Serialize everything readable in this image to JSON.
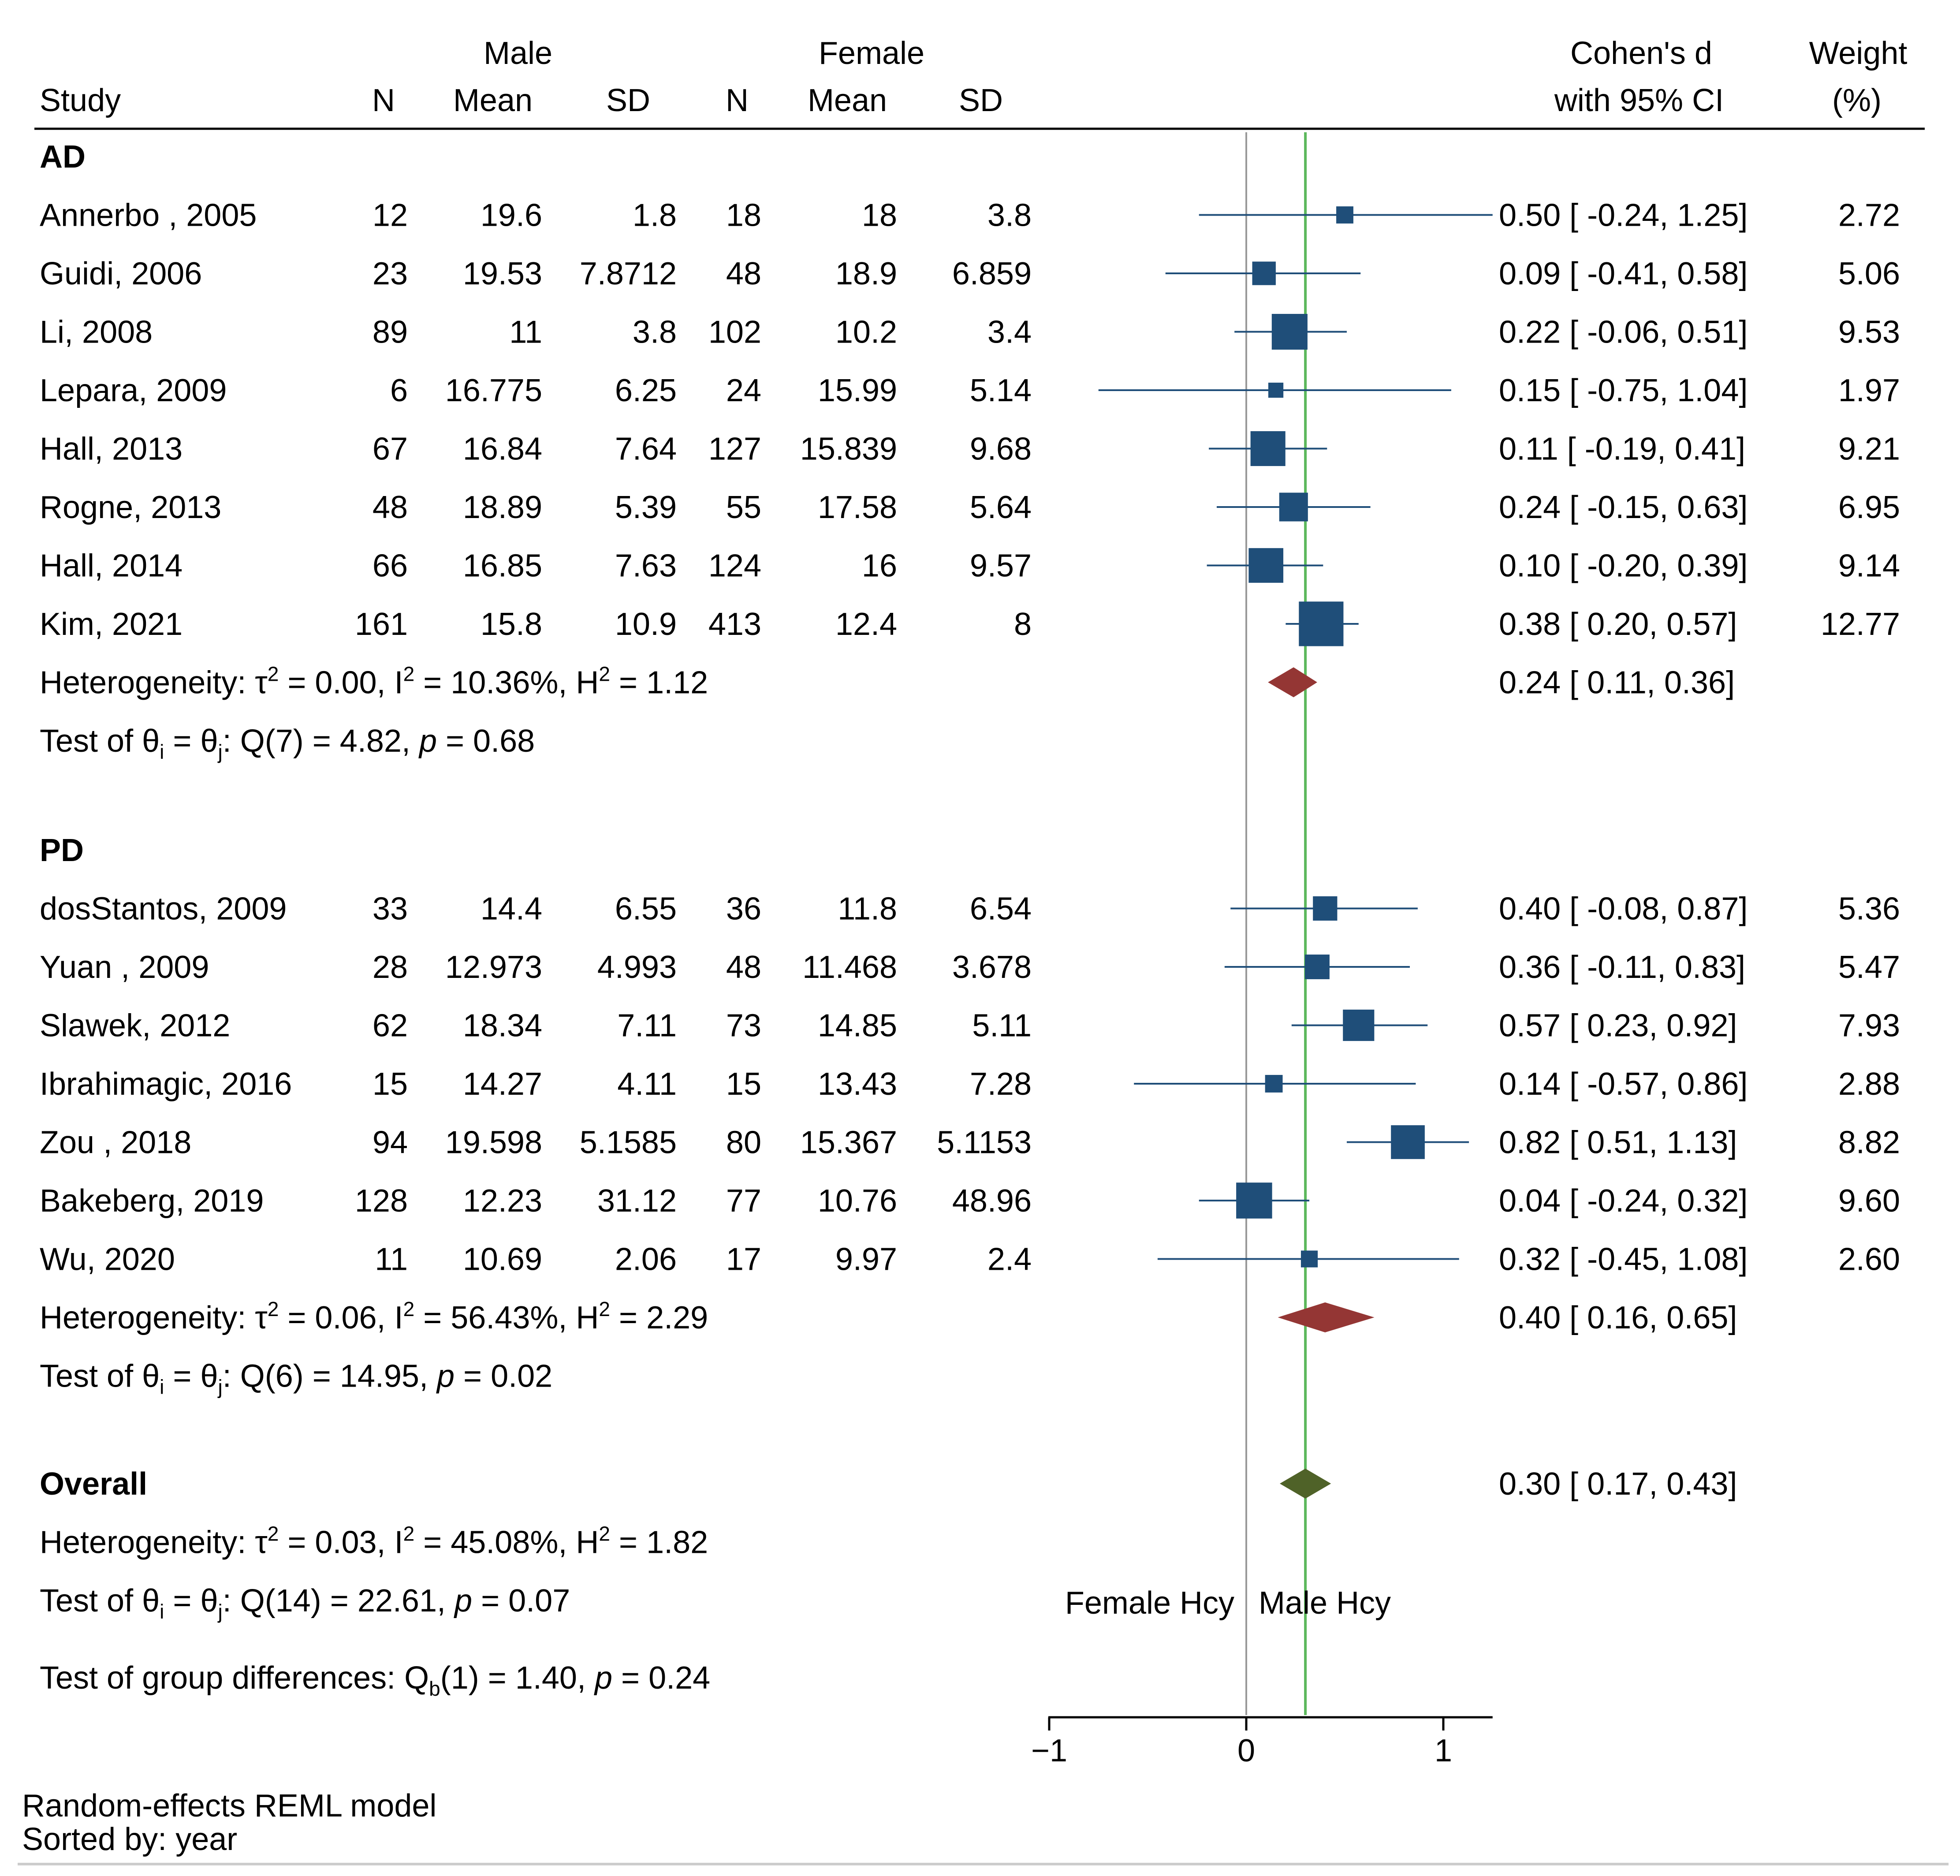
{
  "chart_data": {
    "type": "forest",
    "title": "",
    "xlabel": "",
    "xlim": [
      -1,
      1.25
    ],
    "xticks": [
      -1,
      0,
      1
    ],
    "x_tick_labels": [
      "−1",
      "0",
      "1"
    ],
    "reference_line": 0,
    "overall_line": 0.3,
    "favors_left": "Female Hcy",
    "favors_right": "Male Hcy",
    "headers": {
      "study": "Study",
      "male_group": "Male",
      "female_group": "Female",
      "n": "N",
      "mean": "Mean",
      "sd": "SD",
      "effect_line1": "Cohen's d",
      "effect_line2": "with 95% CI",
      "weight_line1": "Weight",
      "weight_line2": "(%)"
    },
    "colors": {
      "study_marker": "#1f4e79",
      "subgroup_diamond": "#943634",
      "overall_diamond": "#4f6228",
      "overall_line": "#5cb85c",
      "null_line": "#999999",
      "axis": "#000000"
    },
    "groups": [
      {
        "name": "AD",
        "studies": [
          {
            "study": "Annerbo , 2005",
            "male_n": "12",
            "male_mean": "19.6",
            "male_sd": "1.8",
            "female_n": "18",
            "female_mean": "18",
            "female_sd": "3.8",
            "d": 0.5,
            "lo": -0.24,
            "hi": 1.25,
            "ci_text": "0.50 [ -0.24,  1.25]",
            "weight": 2.72,
            "weight_text": "2.72"
          },
          {
            "study": "Guidi, 2006",
            "male_n": "23",
            "male_mean": "19.53",
            "male_sd": "7.8712",
            "female_n": "48",
            "female_mean": "18.9",
            "female_sd": "6.859",
            "d": 0.09,
            "lo": -0.41,
            "hi": 0.58,
            "ci_text": "0.09 [ -0.41,  0.58]",
            "weight": 5.06,
            "weight_text": "5.06"
          },
          {
            "study": "Li, 2008",
            "male_n": "89",
            "male_mean": "11",
            "male_sd": "3.8",
            "female_n": "102",
            "female_mean": "10.2",
            "female_sd": "3.4",
            "d": 0.22,
            "lo": -0.06,
            "hi": 0.51,
            "ci_text": "0.22 [ -0.06,  0.51]",
            "weight": 9.53,
            "weight_text": "9.53"
          },
          {
            "study": "Lepara, 2009",
            "male_n": "6",
            "male_mean": "16.775",
            "male_sd": "6.25",
            "female_n": "24",
            "female_mean": "15.99",
            "female_sd": "5.14",
            "d": 0.15,
            "lo": -0.75,
            "hi": 1.04,
            "ci_text": "0.15 [ -0.75,  1.04]",
            "weight": 1.97,
            "weight_text": "1.97"
          },
          {
            "study": "Hall, 2013",
            "male_n": "67",
            "male_mean": "16.84",
            "male_sd": "7.64",
            "female_n": "127",
            "female_mean": "15.839",
            "female_sd": "9.68",
            "d": 0.11,
            "lo": -0.19,
            "hi": 0.41,
            "ci_text": "0.11 [ -0.19,  0.41]",
            "weight": 9.21,
            "weight_text": "9.21"
          },
          {
            "study": "Rogne, 2013",
            "male_n": "48",
            "male_mean": "18.89",
            "male_sd": "5.39",
            "female_n": "55",
            "female_mean": "17.58",
            "female_sd": "5.64",
            "d": 0.24,
            "lo": -0.15,
            "hi": 0.63,
            "ci_text": "0.24 [ -0.15,  0.63]",
            "weight": 6.95,
            "weight_text": "6.95"
          },
          {
            "study": "Hall, 2014",
            "male_n": "66",
            "male_mean": "16.85",
            "male_sd": "7.63",
            "female_n": "124",
            "female_mean": "16",
            "female_sd": "9.57",
            "d": 0.1,
            "lo": -0.2,
            "hi": 0.39,
            "ci_text": "0.10 [ -0.20,  0.39]",
            "weight": 9.14,
            "weight_text": "9.14"
          },
          {
            "study": "Kim, 2021",
            "male_n": "161",
            "male_mean": "15.8",
            "male_sd": "10.9",
            "female_n": "413",
            "female_mean": "12.4",
            "female_sd": "8",
            "d": 0.38,
            "lo": 0.2,
            "hi": 0.57,
            "ci_text": "0.38 [  0.20,  0.57]",
            "weight": 12.77,
            "weight_text": "12.77"
          }
        ],
        "pooled": {
          "d": 0.24,
          "lo": 0.11,
          "hi": 0.36,
          "ci_text": "0.24 [  0.11,  0.36]"
        },
        "heterogeneity": {
          "label": "Heterogeneity: ",
          "tau_sym": "τ",
          "tau_val": " = 0.00, ",
          "i_sym": "I",
          "i_val": " = 10.36%, ",
          "h_sym": "H",
          "h_val": " = 1.12",
          "sup": "2"
        },
        "test": {
          "label": "Test of ",
          "theta": "θ",
          "sub_i": "i",
          "eq": " = ",
          "sub_j": "j",
          "rest": ": Q(7) = 4.82, ",
          "p": "p",
          "p_val": " = 0.68"
        }
      },
      {
        "name": "PD",
        "studies": [
          {
            "study": "dosStantos, 2009",
            "male_n": "33",
            "male_mean": "14.4",
            "male_sd": "6.55",
            "female_n": "36",
            "female_mean": "11.8",
            "female_sd": "6.54",
            "d": 0.4,
            "lo": -0.08,
            "hi": 0.87,
            "ci_text": "0.40 [ -0.08,  0.87]",
            "weight": 5.36,
            "weight_text": "5.36"
          },
          {
            "study": "Yuan , 2009",
            "male_n": "28",
            "male_mean": "12.973",
            "male_sd": "4.993",
            "female_n": "48",
            "female_mean": "11.468",
            "female_sd": "3.678",
            "d": 0.36,
            "lo": -0.11,
            "hi": 0.83,
            "ci_text": "0.36 [ -0.11,  0.83]",
            "weight": 5.47,
            "weight_text": "5.47"
          },
          {
            "study": "Slawek, 2012",
            "male_n": "62",
            "male_mean": "18.34",
            "male_sd": "7.11",
            "female_n": "73",
            "female_mean": "14.85",
            "female_sd": "5.11",
            "d": 0.57,
            "lo": 0.23,
            "hi": 0.92,
            "ci_text": "0.57 [  0.23,  0.92]",
            "weight": 7.93,
            "weight_text": "7.93"
          },
          {
            "study": "Ibrahimagic, 2016",
            "male_n": "15",
            "male_mean": "14.27",
            "male_sd": "4.11",
            "female_n": "15",
            "female_mean": "13.43",
            "female_sd": "7.28",
            "d": 0.14,
            "lo": -0.57,
            "hi": 0.86,
            "ci_text": "0.14 [ -0.57,  0.86]",
            "weight": 2.88,
            "weight_text": "2.88"
          },
          {
            "study": "Zou , 2018",
            "male_n": "94",
            "male_mean": "19.598",
            "male_sd": "5.1585",
            "female_n": "80",
            "female_mean": "15.367",
            "female_sd": "5.1153",
            "d": 0.82,
            "lo": 0.51,
            "hi": 1.13,
            "ci_text": "0.82 [  0.51,  1.13]",
            "weight": 8.82,
            "weight_text": "8.82"
          },
          {
            "study": "Bakeberg, 2019",
            "male_n": "128",
            "male_mean": "12.23",
            "male_sd": "31.12",
            "female_n": "77",
            "female_mean": "10.76",
            "female_sd": "48.96",
            "d": 0.04,
            "lo": -0.24,
            "hi": 0.32,
            "ci_text": "0.04 [ -0.24,  0.32]",
            "weight": 9.6,
            "weight_text": "9.60"
          },
          {
            "study": "Wu, 2020",
            "male_n": "11",
            "male_mean": "10.69",
            "male_sd": "2.06",
            "female_n": "17",
            "female_mean": "9.97",
            "female_sd": "2.4",
            "d": 0.32,
            "lo": -0.45,
            "hi": 1.08,
            "ci_text": "0.32 [ -0.45,  1.08]",
            "weight": 2.6,
            "weight_text": "2.60"
          }
        ],
        "pooled": {
          "d": 0.4,
          "lo": 0.16,
          "hi": 0.65,
          "ci_text": "0.40 [  0.16,  0.65]"
        },
        "heterogeneity": {
          "label": "Heterogeneity: ",
          "tau_sym": "τ",
          "tau_val": " = 0.06, ",
          "i_sym": "I",
          "i_val": " = 56.43%, ",
          "h_sym": "H",
          "h_val": " = 2.29",
          "sup": "2"
        },
        "test": {
          "label": "Test of ",
          "theta": "θ",
          "sub_i": "i",
          "eq": " = ",
          "sub_j": "j",
          "rest": ": Q(6) = 14.95, ",
          "p": "p",
          "p_val": " = 0.02"
        }
      }
    ],
    "overall": {
      "name": "Overall",
      "d": 0.3,
      "lo": 0.17,
      "hi": 0.43,
      "ci_text": "0.30 [  0.17,  0.43]",
      "heterogeneity": {
        "label": "Heterogeneity: ",
        "tau_sym": "τ",
        "tau_val": " = 0.03, ",
        "i_sym": "I",
        "i_val": " = 45.08%, ",
        "h_sym": "H",
        "h_val": " = 1.82",
        "sup": "2"
      },
      "test": {
        "label": "Test of ",
        "theta": "θ",
        "sub_i": "i",
        "eq": " = ",
        "sub_j": "j",
        "rest": ": Q(14) = 22.61, ",
        "p": "p",
        "p_val": " = 0.07"
      },
      "group_test": {
        "label": "Test of group differences: Q",
        "sub_b": "b",
        "rest": "(1) = 1.40, ",
        "p": "p",
        "p_val": " = 0.24"
      }
    },
    "footnotes": [
      "Random-effects REML model",
      "Sorted by: year"
    ]
  }
}
